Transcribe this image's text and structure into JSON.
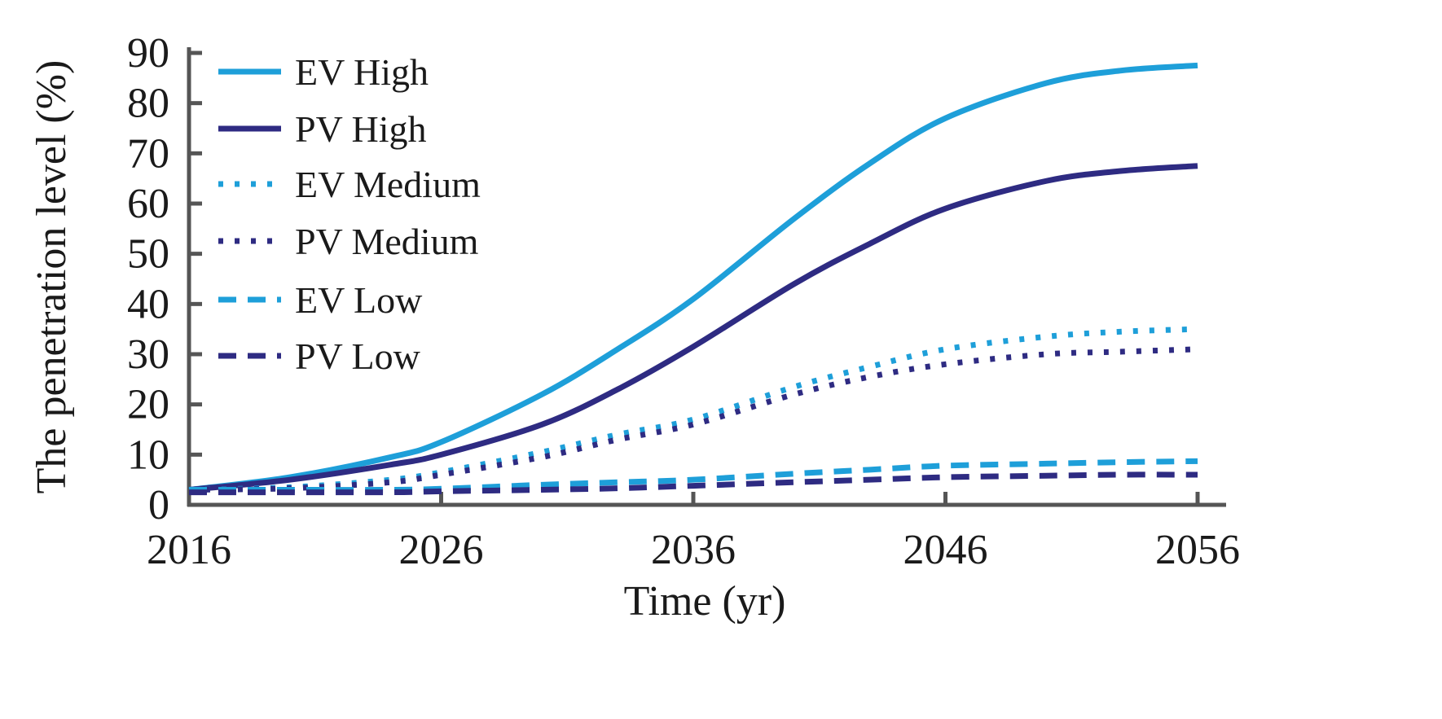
{
  "chart_data": {
    "type": "line",
    "title": "",
    "xlabel": "Time (yr)",
    "ylabel": "The penetration level (%)",
    "xlim": [
      2016,
      2056
    ],
    "ylim": [
      0,
      90
    ],
    "xticks": [
      "2016",
      "2026",
      "2036",
      "2046",
      "2056"
    ],
    "yticks": [
      "0",
      "10",
      "20",
      "30",
      "40",
      "50",
      "60",
      "70",
      "80",
      "90"
    ],
    "grid": false,
    "legend_position": "top-left",
    "x": [
      2016,
      2020,
      2024,
      2026,
      2030,
      2033,
      2036,
      2040,
      2043,
      2046,
      2050,
      2053,
      2056
    ],
    "series": [
      {
        "name": "EV High",
        "color": "#1e9fd9",
        "style": "solid",
        "values": [
          3,
          5.5,
          9.5,
          12.5,
          22,
          31,
          41,
          57,
          68,
          77,
          84,
          86.5,
          87.5
        ]
      },
      {
        "name": "PV High",
        "color": "#2e2b82",
        "style": "solid",
        "values": [
          3,
          5,
          8,
          10,
          16,
          23,
          31.5,
          44,
          52,
          59,
          64.5,
          66.5,
          67.5
        ]
      },
      {
        "name": "EV Medium",
        "color": "#1e9fd9",
        "style": "dotted",
        "values": [
          3,
          3.5,
          5,
          6.5,
          10.5,
          14,
          17,
          23.5,
          27.5,
          31,
          33.5,
          34.5,
          35
        ]
      },
      {
        "name": "PV Medium",
        "color": "#2e2b82",
        "style": "dotted",
        "values": [
          3,
          3.3,
          4.5,
          6,
          9.5,
          13,
          16,
          22,
          25.5,
          28,
          30,
          30.5,
          31
        ]
      },
      {
        "name": "EV Low",
        "color": "#1e9fd9",
        "style": "dashed",
        "values": [
          3,
          3,
          3,
          3.2,
          4,
          4.5,
          5,
          6.2,
          7,
          7.8,
          8.2,
          8.5,
          8.7
        ]
      },
      {
        "name": "PV Low",
        "color": "#2e2b82",
        "style": "dashed",
        "values": [
          2.5,
          2.5,
          2.5,
          2.7,
          3,
          3.3,
          3.8,
          4.5,
          5,
          5.5,
          5.8,
          6,
          6
        ]
      }
    ]
  }
}
